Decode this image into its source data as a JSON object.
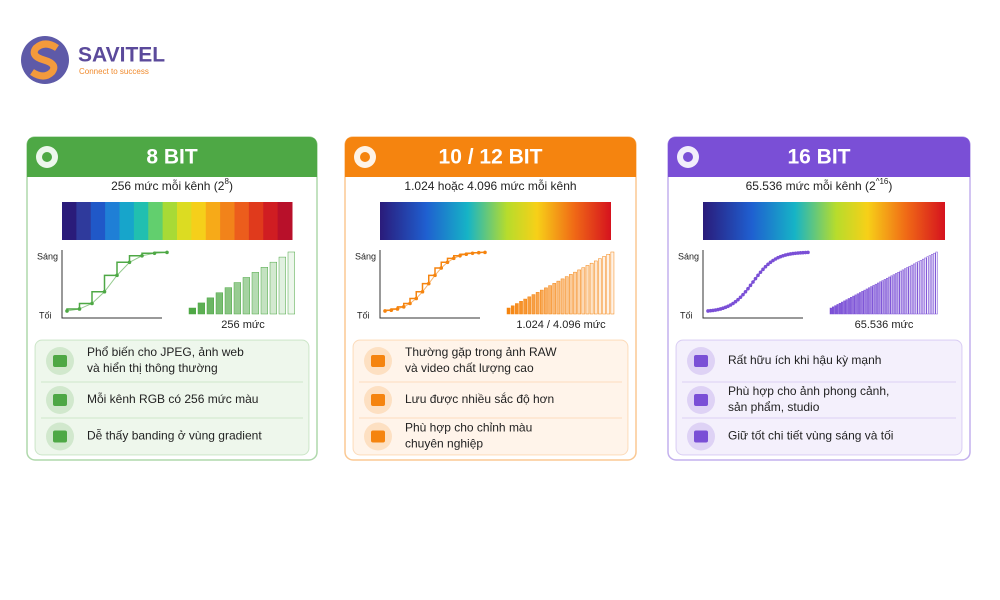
{
  "logo": {
    "name": "SAVITEL",
    "tagline": "Connect to success"
  },
  "cards": [
    {
      "title": "8 BIT",
      "color": "#4ea845",
      "light": "#eef7ec",
      "subtitle": "256 mức mỗi kênh (2",
      "subtitle_sup": "8",
      "subtitle_end": ")",
      "axis_top": "Sáng",
      "axis_bottom": "Tối",
      "levels_label": "256 mức",
      "features": [
        [
          "Phổ biến cho JPEG, ảnh web",
          "và hiển thị thông thường"
        ],
        [
          "Mỗi kênh RGB có 256 mức màu"
        ],
        [
          "Dễ thấy banding ở vùng gradient"
        ]
      ]
    },
    {
      "title": "10 / 12 BIT",
      "color": "#f5840f",
      "light": "#fff4ea",
      "subtitle": "1.024 hoặc 4.096 mức mỗi kênh",
      "subtitle_sup": null,
      "subtitle_end": null,
      "axis_top": "Sáng",
      "axis_bottom": "Tối",
      "levels_label": "1.024 / 4.096 mức",
      "features": [
        [
          "Thường gặp trong ảnh RAW",
          "và video chất lượng cao"
        ],
        [
          "Lưu được nhiều sắc độ hơn"
        ],
        [
          "Phù hợp cho chỉnh màu",
          "chuyên nghiệp"
        ]
      ]
    },
    {
      "title": "16 BIT",
      "color": "#7a4fd6",
      "light": "#f4f0fc",
      "subtitle": "65.536 mức mỗi kênh (2",
      "subtitle_sup": "^16",
      "subtitle_end": ")",
      "axis_top": "Sáng",
      "axis_bottom": "Tối",
      "levels_label": "65.536 mức",
      "features": [
        [
          "Rất hữu ích khi hậu kỳ mạnh"
        ],
        [
          "Phù hợp cho ảnh phong cảnh,",
          "sản phẩm, studio"
        ],
        [
          "Giữ tốt chi tiết vùng sáng và tối"
        ]
      ]
    }
  ]
}
